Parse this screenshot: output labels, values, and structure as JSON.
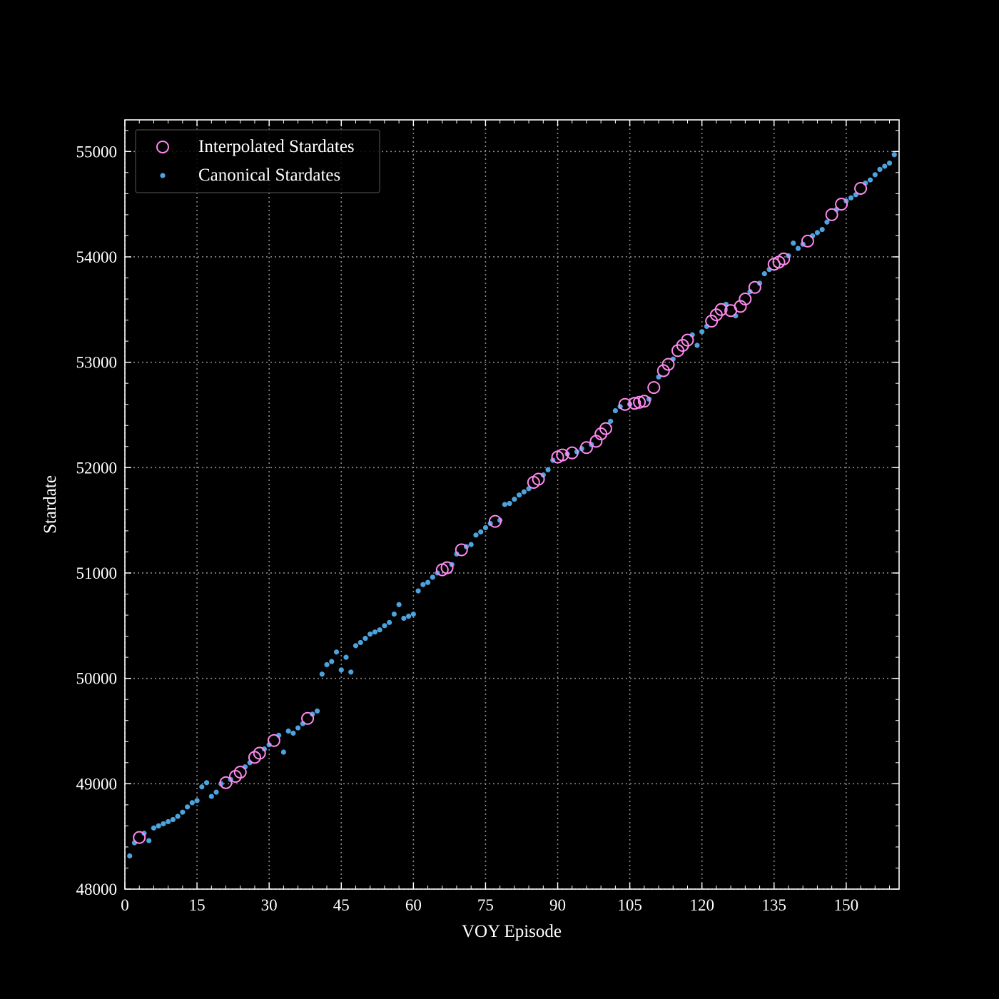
{
  "chart_data": {
    "type": "scatter",
    "title": "",
    "xlabel": "VOY Episode",
    "ylabel": "Stardate",
    "xlim": [
      0,
      161
    ],
    "ylim": [
      48000,
      55300
    ],
    "x_ticks": [
      0,
      15,
      30,
      45,
      60,
      75,
      90,
      105,
      120,
      135,
      150
    ],
    "y_ticks": [
      48000,
      49000,
      50000,
      51000,
      52000,
      53000,
      54000,
      55000
    ],
    "x_tick_labels": [
      "0",
      "15",
      "30",
      "45",
      "60",
      "75",
      "90",
      "105",
      "120",
      "135",
      "150"
    ],
    "y_tick_labels": [
      "48000",
      "49000",
      "50000",
      "51000",
      "52000",
      "53000",
      "54000",
      "55000"
    ],
    "grid": true,
    "legend_position": "upper-left",
    "background": "#000000",
    "series": [
      {
        "name": "Interpolated Stardates",
        "marker": "open-circle",
        "color": "#ff88ee",
        "points": [
          [
            3,
            48490
          ],
          [
            21,
            49010
          ],
          [
            23,
            49070
          ],
          [
            24,
            49110
          ],
          [
            27,
            49250
          ],
          [
            28,
            49290
          ],
          [
            31,
            49410
          ],
          [
            38,
            49620
          ],
          [
            66,
            51030
          ],
          [
            67,
            51050
          ],
          [
            70,
            51220
          ],
          [
            77,
            51490
          ],
          [
            85,
            51860
          ],
          [
            86,
            51890
          ],
          [
            90,
            52100
          ],
          [
            91,
            52120
          ],
          [
            93,
            52140
          ],
          [
            96,
            52190
          ],
          [
            98,
            52250
          ],
          [
            99,
            52320
          ],
          [
            100,
            52370
          ],
          [
            104,
            52600
          ],
          [
            106,
            52610
          ],
          [
            107,
            52620
          ],
          [
            108,
            52630
          ],
          [
            110,
            52760
          ],
          [
            112,
            52920
          ],
          [
            113,
            52980
          ],
          [
            115,
            53110
          ],
          [
            116,
            53160
          ],
          [
            117,
            53210
          ],
          [
            122,
            53390
          ],
          [
            123,
            53450
          ],
          [
            124,
            53500
          ],
          [
            126,
            53490
          ],
          [
            128,
            53530
          ],
          [
            129,
            53600
          ],
          [
            131,
            53710
          ],
          [
            135,
            53930
          ],
          [
            136,
            53950
          ],
          [
            137,
            53980
          ],
          [
            142,
            54150
          ],
          [
            147,
            54400
          ],
          [
            149,
            54500
          ],
          [
            153,
            54650
          ]
        ]
      },
      {
        "name": "Canonical Stardates",
        "marker": "dot",
        "color": "#4ca3dd",
        "points": [
          [
            1,
            48315
          ],
          [
            2,
            48440
          ],
          [
            4,
            48530
          ],
          [
            5,
            48460
          ],
          [
            6,
            48580
          ],
          [
            7,
            48600
          ],
          [
            8,
            48620
          ],
          [
            9,
            48640
          ],
          [
            10,
            48660
          ],
          [
            11,
            48690
          ],
          [
            12,
            48730
          ],
          [
            13,
            48780
          ],
          [
            14,
            48820
          ],
          [
            15,
            48840
          ],
          [
            16,
            48970
          ],
          [
            17,
            49010
          ],
          [
            18,
            48880
          ],
          [
            19,
            48920
          ],
          [
            20,
            49000
          ],
          [
            22,
            49040
          ],
          [
            25,
            49160
          ],
          [
            26,
            49200
          ],
          [
            29,
            49330
          ],
          [
            30,
            49370
          ],
          [
            32,
            49460
          ],
          [
            33,
            49300
          ],
          [
            34,
            49500
          ],
          [
            35,
            49480
          ],
          [
            36,
            49530
          ],
          [
            37,
            49570
          ],
          [
            39,
            49660
          ],
          [
            40,
            49690
          ],
          [
            41,
            50040
          ],
          [
            42,
            50130
          ],
          [
            43,
            50160
          ],
          [
            44,
            50250
          ],
          [
            45,
            50080
          ],
          [
            46,
            50200
          ],
          [
            47,
            50060
          ],
          [
            48,
            50310
          ],
          [
            49,
            50340
          ],
          [
            50,
            50380
          ],
          [
            51,
            50420
          ],
          [
            52,
            50440
          ],
          [
            53,
            50460
          ],
          [
            54,
            50500
          ],
          [
            55,
            50530
          ],
          [
            56,
            50610
          ],
          [
            57,
            50700
          ],
          [
            58,
            50570
          ],
          [
            59,
            50590
          ],
          [
            60,
            50610
          ],
          [
            61,
            50830
          ],
          [
            62,
            50890
          ],
          [
            63,
            50910
          ],
          [
            64,
            50960
          ],
          [
            65,
            51000
          ],
          [
            68,
            51080
          ],
          [
            69,
            51180
          ],
          [
            71,
            51250
          ],
          [
            72,
            51270
          ],
          [
            73,
            51360
          ],
          [
            74,
            51390
          ],
          [
            75,
            51430
          ],
          [
            76,
            51470
          ],
          [
            78,
            51500
          ],
          [
            79,
            51650
          ],
          [
            80,
            51660
          ],
          [
            81,
            51700
          ],
          [
            82,
            51740
          ],
          [
            83,
            51770
          ],
          [
            84,
            51800
          ],
          [
            87,
            51930
          ],
          [
            88,
            51980
          ],
          [
            89,
            52070
          ],
          [
            92,
            52130
          ],
          [
            94,
            52150
          ],
          [
            95,
            52180
          ],
          [
            97,
            52220
          ],
          [
            101,
            52440
          ],
          [
            102,
            52540
          ],
          [
            103,
            52580
          ],
          [
            105,
            52600
          ],
          [
            109,
            52650
          ],
          [
            111,
            52860
          ],
          [
            114,
            53030
          ],
          [
            118,
            53260
          ],
          [
            119,
            53160
          ],
          [
            120,
            53290
          ],
          [
            121,
            53340
          ],
          [
            125,
            53550
          ],
          [
            127,
            53440
          ],
          [
            130,
            53670
          ],
          [
            132,
            53750
          ],
          [
            133,
            53840
          ],
          [
            134,
            53880
          ],
          [
            138,
            54010
          ],
          [
            139,
            54130
          ],
          [
            140,
            54080
          ],
          [
            141,
            54120
          ],
          [
            143,
            54200
          ],
          [
            144,
            54230
          ],
          [
            145,
            54260
          ],
          [
            146,
            54330
          ],
          [
            148,
            54450
          ],
          [
            150,
            54530
          ],
          [
            151,
            54560
          ],
          [
            152,
            54590
          ],
          [
            154,
            54700
          ],
          [
            155,
            54730
          ],
          [
            156,
            54780
          ],
          [
            157,
            54830
          ],
          [
            158,
            54860
          ],
          [
            159,
            54890
          ],
          [
            160,
            54970
          ]
        ]
      }
    ]
  }
}
